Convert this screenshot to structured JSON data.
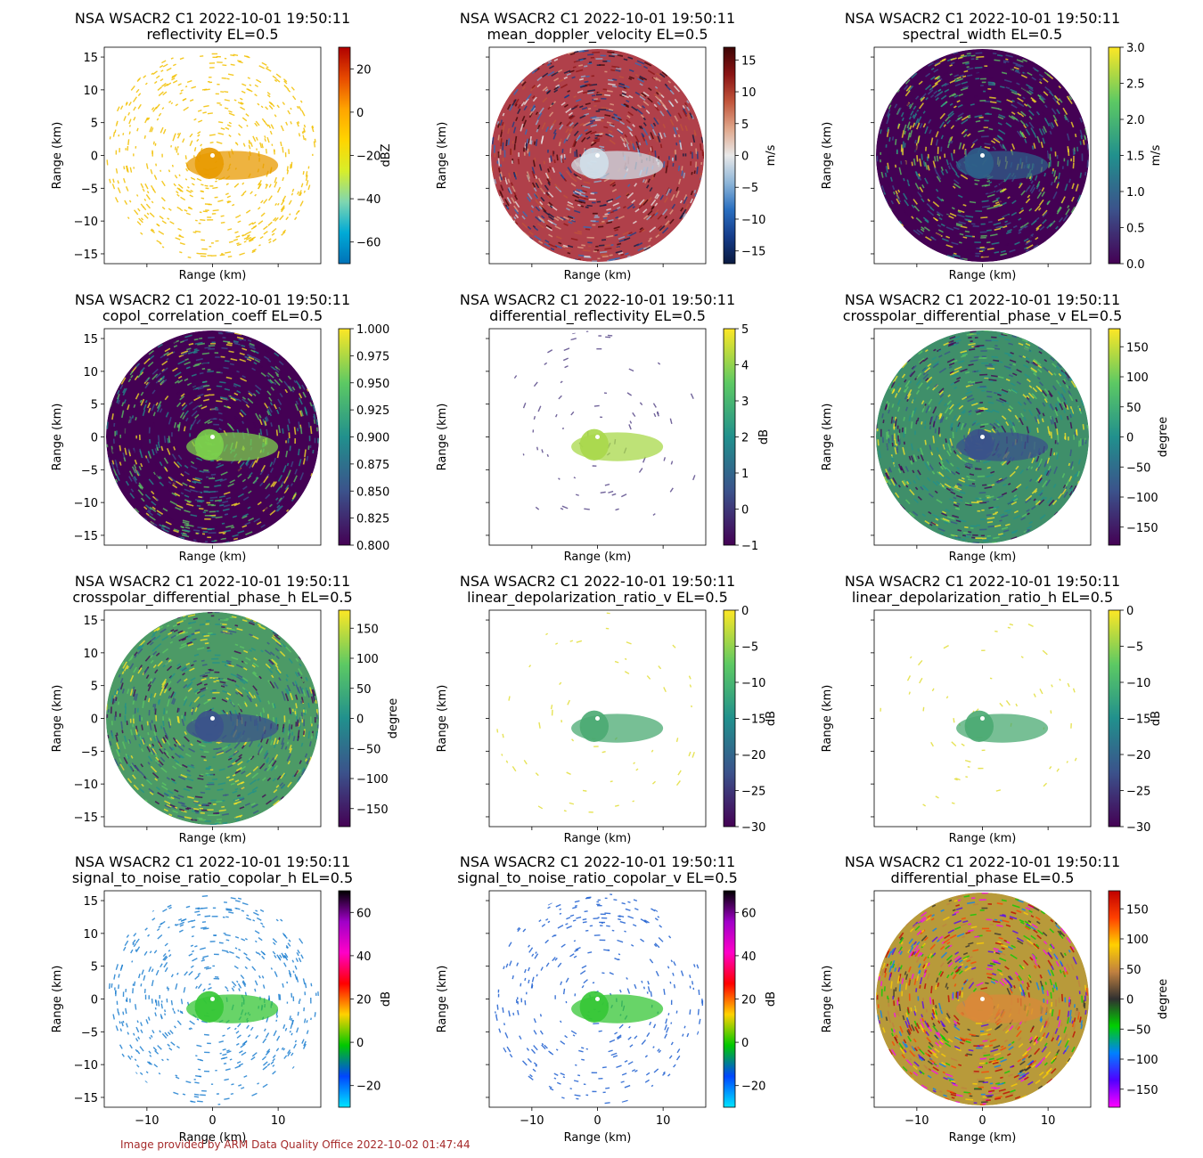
{
  "footer": "Image provided by ARM Data Quality Office 2022-10-02 01:47:44",
  "chart_data": [
    {
      "type": "heatmap",
      "title": "NSA WSACR2 C1 2022-10-01 19:50:11",
      "subtitle": "reflectivity  EL=0.5",
      "xlabel": "Range (km)",
      "ylabel": "Range (km)",
      "xlim": [
        -16.5,
        16.5
      ],
      "ylim": [
        -16.5,
        16.5
      ],
      "colorbar": {
        "label": "dBZ",
        "range": [
          -70,
          30
        ],
        "ticks": [
          -60,
          -40,
          -20,
          0,
          20
        ],
        "colormap": "pyart_HomeyerRainbow",
        "colors": [
          "#0072b8",
          "#00aad6",
          "#7fd6b0",
          "#d8ee2a",
          "#ffd400",
          "#ffa400",
          "#e74a00",
          "#b00000"
        ]
      },
      "style": {
        "fill": "#f2c000",
        "density": 0.38,
        "core": "#e89a00"
      }
    },
    {
      "type": "heatmap",
      "title": "NSA WSACR2 C1 2022-10-01 19:50:11",
      "subtitle": "mean_doppler_velocity  EL=0.5",
      "xlabel": "Range (km)",
      "ylabel": "Range (km)",
      "xlim": [
        -16.5,
        16.5
      ],
      "ylim": [
        -16.5,
        16.5
      ],
      "colorbar": {
        "label": "m/s",
        "range": [
          -17,
          17
        ],
        "ticks": [
          -15,
          -10,
          -5,
          0,
          5,
          10,
          15
        ],
        "colormap": "pyart_BuDRd18",
        "colors": [
          "#0a1a40",
          "#153c8a",
          "#2a6fc0",
          "#8fb6d8",
          "#e8e8e8",
          "#e0a68a",
          "#c0543a",
          "#8a1414",
          "#3c0505"
        ]
      },
      "style": {
        "fill": "#b0404a",
        "density": 0.92,
        "core": "#d0e0ea"
      }
    },
    {
      "type": "heatmap",
      "title": "NSA WSACR2 C1 2022-10-01 19:50:11",
      "subtitle": "spectral_width  EL=0.5",
      "xlabel": "Range (km)",
      "ylabel": "Range (km)",
      "xlim": [
        -16.5,
        16.5
      ],
      "ylim": [
        -16.5,
        16.5
      ],
      "colorbar": {
        "label": "m/s",
        "range": [
          0,
          3
        ],
        "ticks": [
          0.0,
          0.5,
          1.0,
          1.5,
          2.0,
          2.5,
          3.0
        ],
        "colormap": "viridis",
        "colors": [
          "#440154",
          "#3b528b",
          "#21908d",
          "#5dc963",
          "#fde725"
        ]
      },
      "style": {
        "fill": "#440154",
        "density": 1.0,
        "core": "#2d5f8a"
      }
    },
    {
      "type": "heatmap",
      "title": "NSA WSACR2 C1 2022-10-01 19:50:11",
      "subtitle": "copol_correlation_coeff  EL=0.5",
      "xlabel": "Range (km)",
      "ylabel": "Range (km)",
      "xlim": [
        -16.5,
        16.5
      ],
      "ylim": [
        -16.5,
        16.5
      ],
      "colorbar": {
        "label": "",
        "range": [
          0.8,
          1.0
        ],
        "ticks": [
          0.8,
          0.825,
          0.85,
          0.875,
          0.9,
          0.925,
          0.95,
          0.975,
          1.0
        ],
        "colormap": "viridis",
        "colors": [
          "#440154",
          "#3b528b",
          "#21908d",
          "#5dc963",
          "#fde725"
        ]
      },
      "style": {
        "fill": "#440154",
        "density": 1.0,
        "core": "#7bd04c"
      }
    },
    {
      "type": "heatmap",
      "title": "NSA WSACR2 C1 2022-10-01 19:50:11",
      "subtitle": "differential_reflectivity  EL=0.5",
      "xlabel": "Range (km)",
      "ylabel": "Range (km)",
      "xlim": [
        -16.5,
        16.5
      ],
      "ylim": [
        -16.5,
        16.5
      ],
      "colorbar": {
        "label": "dB",
        "range": [
          -1,
          5
        ],
        "ticks": [
          -1,
          0,
          1,
          2,
          3,
          4,
          5
        ],
        "colormap": "viridis",
        "colors": [
          "#440154",
          "#3b528b",
          "#21908d",
          "#5dc963",
          "#fde725"
        ]
      },
      "style": {
        "fill": "#5a4a8a",
        "density": 0.05,
        "core": "#a8d84a"
      }
    },
    {
      "type": "heatmap",
      "title": "NSA WSACR2 C1 2022-10-01 19:50:11",
      "subtitle": "crosspolar_differential_phase_v  EL=0.5",
      "xlabel": "Range (km)",
      "ylabel": "Range (km)",
      "xlim": [
        -16.5,
        16.5
      ],
      "ylim": [
        -16.5,
        16.5
      ],
      "colorbar": {
        "label": "degree",
        "range": [
          -180,
          180
        ],
        "ticks": [
          -150,
          -100,
          -50,
          0,
          50,
          100,
          150
        ],
        "colormap": "viridis",
        "colors": [
          "#440154",
          "#3b528b",
          "#21908d",
          "#5dc963",
          "#fde725"
        ]
      },
      "style": {
        "fill": "#3f8f6a",
        "density": 1.0,
        "core": "#3b528b"
      }
    },
    {
      "type": "heatmap",
      "title": "NSA WSACR2 C1 2022-10-01 19:50:11",
      "subtitle": "crosspolar_differential_phase_h  EL=0.5",
      "xlabel": "Range (km)",
      "ylabel": "Range (km)",
      "xlim": [
        -16.5,
        16.5
      ],
      "ylim": [
        -16.5,
        16.5
      ],
      "colorbar": {
        "label": "degree",
        "range": [
          -180,
          180
        ],
        "ticks": [
          -150,
          -100,
          -50,
          0,
          50,
          100,
          150
        ],
        "colormap": "viridis",
        "colors": [
          "#440154",
          "#3b528b",
          "#21908d",
          "#5dc963",
          "#fde725"
        ]
      },
      "style": {
        "fill": "#4c9a66",
        "density": 1.0,
        "core": "#3b528b"
      }
    },
    {
      "type": "heatmap",
      "title": "NSA WSACR2 C1 2022-10-01 19:50:11",
      "subtitle": "linear_depolarization_ratio_v  EL=0.5",
      "xlabel": "Range (km)",
      "ylabel": "Range (km)",
      "xlim": [
        -16.5,
        16.5
      ],
      "ylim": [
        -16.5,
        16.5
      ],
      "colorbar": {
        "label": "dB",
        "range": [
          -30,
          0
        ],
        "ticks": [
          -30,
          -25,
          -20,
          -15,
          -10,
          -5,
          0
        ],
        "colormap": "viridis",
        "colors": [
          "#440154",
          "#3b528b",
          "#21908d",
          "#5dc963",
          "#fde725"
        ]
      },
      "style": {
        "fill": "#e2de3a",
        "density": 0.04,
        "core": "#4aaa72"
      }
    },
    {
      "type": "heatmap",
      "title": "NSA WSACR2 C1 2022-10-01 19:50:11",
      "subtitle": "linear_depolarization_ratio_h  EL=0.5",
      "xlabel": "Range (km)",
      "ylabel": "Range (km)",
      "xlim": [
        -16.5,
        16.5
      ],
      "ylim": [
        -16.5,
        16.5
      ],
      "colorbar": {
        "label": "dB",
        "range": [
          -30,
          0
        ],
        "ticks": [
          -30,
          -25,
          -20,
          -15,
          -10,
          -5,
          0
        ],
        "colormap": "viridis",
        "colors": [
          "#440154",
          "#3b528b",
          "#21908d",
          "#5dc963",
          "#fde725"
        ]
      },
      "style": {
        "fill": "#e2de3a",
        "density": 0.04,
        "core": "#4aaa72"
      }
    },
    {
      "type": "heatmap",
      "title": "NSA WSACR2 C1 2022-10-01 19:50:11",
      "subtitle": "signal_to_noise_ratio_copolar_h  EL=0.5",
      "xlabel": "Range (km)",
      "ylabel": "Range (km)",
      "xlim": [
        -16.5,
        16.5
      ],
      "ylim": [
        -16.5,
        16.5
      ],
      "colorbar": {
        "label": "dB",
        "range": [
          -30,
          70
        ],
        "ticks": [
          -20,
          0,
          20,
          40,
          60
        ],
        "colormap": "pyart_NWSRef",
        "colors": [
          "#00e5ff",
          "#0046ff",
          "#00c800",
          "#ffd200",
          "#ff0000",
          "#ff00c8",
          "#a000c8",
          "#000000"
        ]
      },
      "style": {
        "fill": "#1e7fd0",
        "density": 0.35,
        "core": "#35c635"
      }
    },
    {
      "type": "heatmap",
      "title": "NSA WSACR2 C1 2022-10-01 19:50:11",
      "subtitle": "signal_to_noise_ratio_copolar_v  EL=0.5",
      "xlabel": "Range (km)",
      "ylabel": "Range (km)",
      "xlim": [
        -16.5,
        16.5
      ],
      "ylim": [
        -16.5,
        16.5
      ],
      "colorbar": {
        "label": "dB",
        "range": [
          -30,
          70
        ],
        "ticks": [
          -20,
          0,
          20,
          40,
          60
        ],
        "colormap": "pyart_NWSRef",
        "colors": [
          "#00e5ff",
          "#0046ff",
          "#00c800",
          "#ffd200",
          "#ff0000",
          "#ff00c8",
          "#a000c8",
          "#000000"
        ]
      },
      "style": {
        "fill": "#1e5fd0",
        "density": 0.22,
        "core": "#35c635"
      }
    },
    {
      "type": "heatmap",
      "title": "NSA WSACR2 C1 2022-10-01 19:50:11",
      "subtitle": "differential_phase  EL=0.5",
      "xlabel": "Range (km)",
      "ylabel": "Range (km)",
      "xlim": [
        -16.5,
        16.5
      ],
      "ylim": [
        -16.5,
        16.5
      ],
      "colorbar": {
        "label": "degree",
        "range": [
          -180,
          180
        ],
        "ticks": [
          -150,
          -100,
          -50,
          0,
          50,
          100,
          150
        ],
        "colormap": "pyart_Wild25",
        "colors": [
          "#ff00ff",
          "#5000ff",
          "#0080ff",
          "#00d000",
          "#303030",
          "#c08040",
          "#ffd000",
          "#ff4000",
          "#c00000"
        ]
      },
      "style": {
        "fill": "#b89a3a",
        "density": 1.0,
        "core": "#d9883a"
      }
    }
  ]
}
